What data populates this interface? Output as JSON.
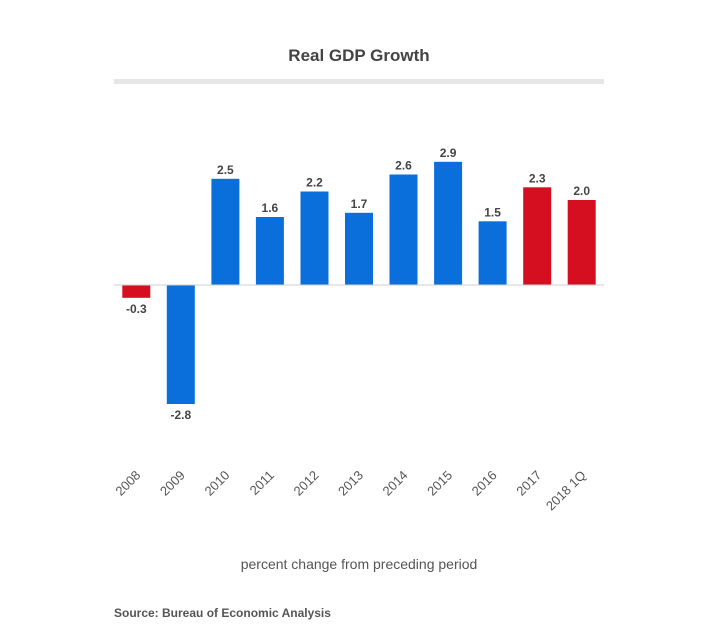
{
  "chart_data": {
    "type": "bar",
    "title": "Real GDP Growth",
    "xlabel": "percent change from preceding period",
    "ylabel": "",
    "categories": [
      "2008",
      "2009",
      "2010",
      "2011",
      "2012",
      "2013",
      "2014",
      "2015",
      "2016",
      "2017",
      "2018 1Q"
    ],
    "values": [
      -0.3,
      -2.8,
      2.5,
      1.6,
      2.2,
      1.7,
      2.6,
      2.9,
      1.5,
      2.3,
      2.0
    ],
    "value_labels": [
      "-0.3",
      "-2.8",
      "2.5",
      "1.6",
      "2.2",
      "1.7",
      "2.6",
      "2.9",
      "1.5",
      "2.3",
      "2.0"
    ],
    "bar_colors": [
      "#d50f1f",
      "#0a6fdb",
      "#0a6fdb",
      "#0a6fdb",
      "#0a6fdb",
      "#0a6fdb",
      "#0a6fdb",
      "#0a6fdb",
      "#0a6fdb",
      "#d50f1f",
      "#d50f1f"
    ],
    "ylim": [
      -3.0,
      3.0
    ],
    "grid": false,
    "legend": "none"
  },
  "source": "Source: Bureau of Economic Analysis"
}
